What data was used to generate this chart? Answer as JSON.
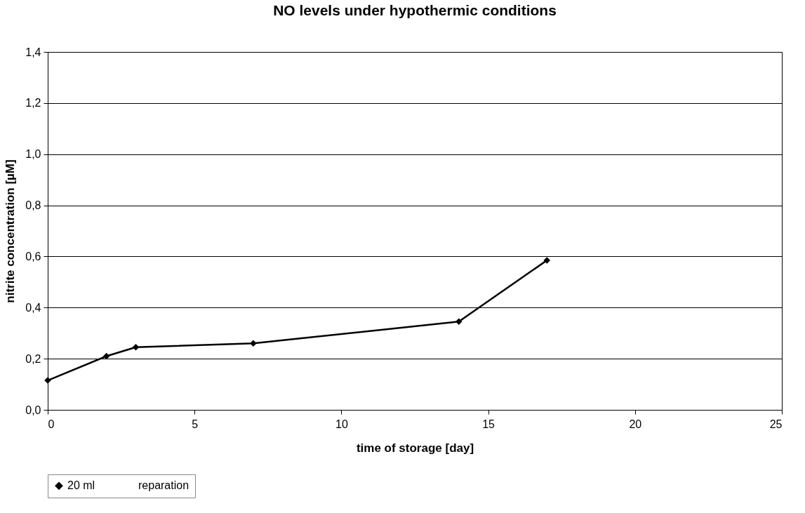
{
  "chart_data": {
    "type": "line",
    "title": "NO levels under hypothermic conditions",
    "xlabel": "time of storage [day]",
    "ylabel": "nitrite concentration [µM]",
    "x": [
      0,
      2,
      3,
      7,
      14,
      17
    ],
    "series": [
      {
        "name": "20 ml",
        "color": "#000000",
        "values": [
          0.115,
          0.21,
          0.245,
          0.26,
          0.345,
          0.585
        ]
      },
      {
        "name": "reparation",
        "values": [
          null,
          null,
          null,
          null,
          null,
          null
        ]
      }
    ],
    "xlim": [
      0,
      25
    ],
    "xticks": [
      0,
      5,
      10,
      15,
      20,
      25
    ],
    "ylim": [
      0,
      1.4
    ],
    "yticks": [
      {
        "value": 0,
        "label": "0,0"
      },
      {
        "value": 0.2,
        "label": "0,2"
      },
      {
        "value": 0.4,
        "label": "0,4"
      },
      {
        "value": 0.6,
        "label": "0,6"
      },
      {
        "value": 0.8,
        "label": "0,8"
      },
      {
        "value": 1.0,
        "label": "1,0"
      },
      {
        "value": 1.2,
        "label": "1,2"
      },
      {
        "value": 1.4,
        "label": "1,4"
      }
    ],
    "grid": "y",
    "legend": "bottom",
    "marker": "diamond",
    "line_style": "solid"
  }
}
